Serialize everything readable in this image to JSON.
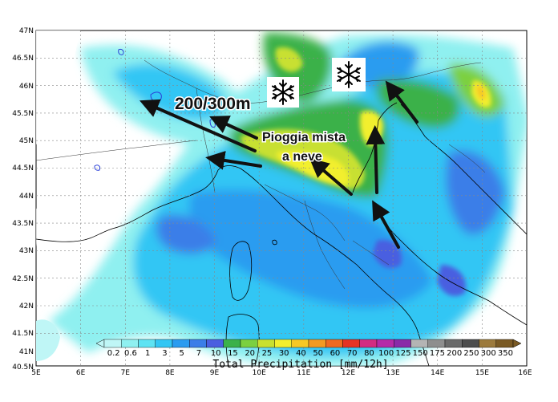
{
  "lat_ticks": [
    "47N",
    "46.5N",
    "46N",
    "45.5N",
    "45N",
    "44.5N",
    "44N",
    "43.5N",
    "43N",
    "42.5N",
    "42N",
    "41.5N",
    "41N",
    "40.5N"
  ],
  "lon_ticks": [
    "5E",
    "6E",
    "7E",
    "8E",
    "9E",
    "10E",
    "11E",
    "12E",
    "13E",
    "14E",
    "15E",
    "16E"
  ],
  "colorbar": {
    "labels": [
      "0.2",
      "0.6",
      "1",
      "3",
      "5",
      "7",
      "10",
      "15",
      "20",
      "25",
      "30",
      "40",
      "50",
      "60",
      "70",
      "80",
      "100",
      "125",
      "150",
      "175",
      "200",
      "250",
      "300",
      "350"
    ],
    "colors": [
      "#bff6f6",
      "#8ff0f0",
      "#5ee3f3",
      "#32c6f4",
      "#2a9cf0",
      "#3a7ee8",
      "#4a5fe0",
      "#3bb14a",
      "#7bd040",
      "#c8e030",
      "#f2ef2e",
      "#f6c825",
      "#f29a22",
      "#ee6a21",
      "#e53324",
      "#d22c82",
      "#b52aa8",
      "#8a2aa8",
      "#b4b4b4",
      "#8e8e8e",
      "#6a6a6a",
      "#4c4c4c",
      "#9c7a3c",
      "#7a5a24"
    ],
    "title": "Total Precipitation [mm/12h]"
  },
  "annotations": {
    "altitude": "200/300m",
    "rain_line1": "Pioggia mista",
    "rain_line2": "a neve"
  },
  "icons": [
    "snowflake-icon",
    "snowflake-icon"
  ]
}
